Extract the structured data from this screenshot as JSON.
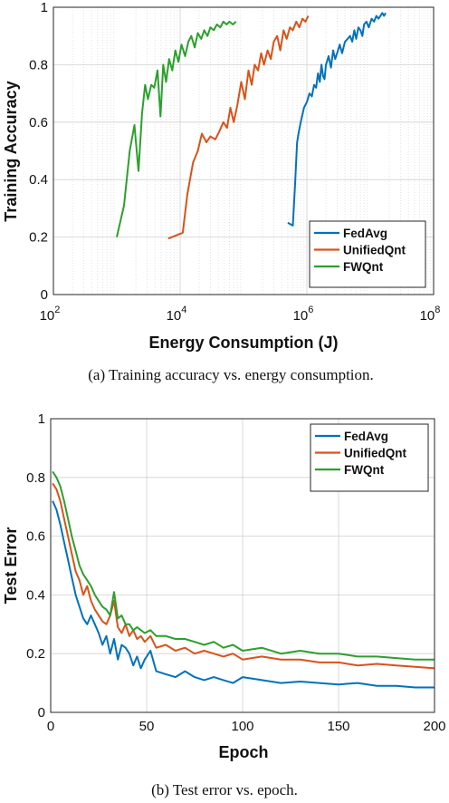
{
  "chart_data": [
    {
      "type": "line",
      "xscale": "log",
      "xlim": [
        100,
        100000000
      ],
      "ylim": [
        0,
        1
      ],
      "xticks": [
        100,
        10000,
        1000000,
        100000000
      ],
      "xtick_labels": [
        {
          "base": "10",
          "exp": "2"
        },
        {
          "base": "10",
          "exp": "4"
        },
        {
          "base": "10",
          "exp": "6"
        },
        {
          "base": "10",
          "exp": "8"
        }
      ],
      "yticks": [
        0,
        0.2,
        0.4,
        0.6,
        0.8,
        1
      ],
      "ytick_labels": [
        "0",
        "0.2",
        "0.4",
        "0.6",
        "0.8",
        "1"
      ],
      "xlabel": "Energy Consumption (J)",
      "ylabel": "Training Accuracy",
      "grid": true,
      "legend_position": "bottom-right",
      "caption": "(a) Training accuracy vs. energy consumption.",
      "series": [
        {
          "name": "FedAvg",
          "color": "#0072BD",
          "x": [
            500000,
            600000,
            650000,
            700000,
            750000,
            800000,
            900000,
            1000000,
            1100000,
            1200000,
            1300000,
            1400000,
            1500000,
            1600000,
            1700000,
            1800000,
            1900000,
            2000000,
            2200000,
            2400000,
            2600000,
            2800000,
            3000000,
            3300000,
            3600000,
            4000000,
            4400000,
            4800000,
            5200000,
            5600000,
            6000000,
            6500000,
            7000000,
            7500000,
            8000000,
            8700000,
            9500000,
            10500000,
            11500000,
            12500000,
            13500000,
            14500000,
            15500000,
            16500000,
            17500000
          ],
          "y": [
            0.25,
            0.24,
            0.38,
            0.53,
            0.57,
            0.6,
            0.65,
            0.67,
            0.7,
            0.69,
            0.73,
            0.72,
            0.77,
            0.74,
            0.8,
            0.76,
            0.75,
            0.8,
            0.83,
            0.79,
            0.85,
            0.82,
            0.84,
            0.87,
            0.84,
            0.88,
            0.89,
            0.9,
            0.88,
            0.92,
            0.89,
            0.93,
            0.92,
            0.9,
            0.94,
            0.95,
            0.93,
            0.96,
            0.95,
            0.97,
            0.96,
            0.97,
            0.98,
            0.97,
            0.98
          ]
        },
        {
          "name": "UnifiedQnt",
          "color": "#D95319",
          "x": [
            6500,
            11000,
            13000,
            16000,
            19000,
            22000,
            26000,
            30000,
            36000,
            42000,
            48000,
            55000,
            62000,
            70000,
            80000,
            92000,
            105000,
            120000,
            135000,
            150000,
            170000,
            190000,
            210000,
            240000,
            270000,
            300000,
            340000,
            380000,
            430000,
            480000,
            540000,
            600000,
            680000,
            760000,
            850000,
            950000,
            1050000
          ],
          "y": [
            0.195,
            0.215,
            0.35,
            0.46,
            0.5,
            0.56,
            0.53,
            0.55,
            0.54,
            0.57,
            0.6,
            0.58,
            0.65,
            0.6,
            0.66,
            0.74,
            0.68,
            0.78,
            0.73,
            0.8,
            0.78,
            0.84,
            0.8,
            0.85,
            0.82,
            0.88,
            0.9,
            0.85,
            0.92,
            0.89,
            0.93,
            0.92,
            0.95,
            0.93,
            0.96,
            0.95,
            0.97
          ]
        },
        {
          "name": "FWQnt",
          "color": "#2CA02C",
          "x": [
            1000,
            1300,
            1600,
            1900,
            2200,
            2500,
            2800,
            3100,
            3500,
            3900,
            4400,
            4900,
            5400,
            6000,
            6700,
            7500,
            8400,
            9400,
            10500,
            12000,
            13500,
            15000,
            17000,
            19000,
            21500,
            24000,
            27000,
            30000,
            34000,
            38000,
            43000,
            48000,
            54000,
            60000,
            68000,
            76000
          ],
          "y": [
            0.2,
            0.31,
            0.5,
            0.59,
            0.43,
            0.63,
            0.73,
            0.68,
            0.73,
            0.72,
            0.78,
            0.62,
            0.8,
            0.74,
            0.82,
            0.78,
            0.85,
            0.81,
            0.87,
            0.83,
            0.88,
            0.9,
            0.86,
            0.91,
            0.89,
            0.92,
            0.9,
            0.93,
            0.92,
            0.94,
            0.93,
            0.95,
            0.94,
            0.95,
            0.94,
            0.95
          ]
        }
      ]
    },
    {
      "type": "line",
      "xlim": [
        0,
        200
      ],
      "ylim": [
        0,
        1
      ],
      "xticks": [
        0,
        50,
        100,
        150,
        200
      ],
      "xtick_labels": [
        "0",
        "50",
        "100",
        "150",
        "200"
      ],
      "yticks": [
        0,
        0.2,
        0.4,
        0.6,
        0.8,
        1
      ],
      "ytick_labels": [
        "0",
        "0.2",
        "0.4",
        "0.6",
        "0.8",
        "1"
      ],
      "xlabel": "Epoch",
      "ylabel": "Test Error",
      "grid": true,
      "legend_position": "top-right",
      "caption": "(b) Test error vs. epoch.",
      "series": [
        {
          "name": "FedAvg",
          "color": "#0072BD",
          "x": [
            1,
            3,
            5,
            7,
            9,
            11,
            13,
            15,
            17,
            19,
            21,
            23,
            25,
            27,
            29,
            31,
            33,
            35,
            37,
            39,
            41,
            43,
            45,
            47,
            49,
            52,
            55,
            60,
            65,
            70,
            75,
            80,
            85,
            90,
            95,
            100,
            110,
            120,
            130,
            140,
            150,
            160,
            170,
            180,
            190,
            200
          ],
          "y": [
            0.72,
            0.69,
            0.64,
            0.58,
            0.52,
            0.46,
            0.4,
            0.36,
            0.32,
            0.3,
            0.33,
            0.3,
            0.27,
            0.23,
            0.26,
            0.2,
            0.25,
            0.18,
            0.23,
            0.22,
            0.2,
            0.16,
            0.19,
            0.15,
            0.18,
            0.21,
            0.14,
            0.13,
            0.12,
            0.14,
            0.12,
            0.11,
            0.12,
            0.11,
            0.1,
            0.12,
            0.11,
            0.1,
            0.105,
            0.1,
            0.095,
            0.1,
            0.09,
            0.09,
            0.085,
            0.085
          ]
        },
        {
          "name": "UnifiedQnt",
          "color": "#D95319",
          "x": [
            1,
            3,
            5,
            7,
            9,
            11,
            13,
            15,
            17,
            19,
            21,
            23,
            25,
            27,
            29,
            31,
            33,
            35,
            37,
            39,
            41,
            43,
            45,
            47,
            49,
            52,
            55,
            60,
            65,
            70,
            75,
            80,
            85,
            90,
            95,
            100,
            110,
            120,
            130,
            140,
            150,
            160,
            170,
            180,
            190,
            200
          ],
          "y": [
            0.78,
            0.76,
            0.72,
            0.66,
            0.6,
            0.54,
            0.48,
            0.45,
            0.4,
            0.43,
            0.38,
            0.35,
            0.33,
            0.31,
            0.3,
            0.33,
            0.38,
            0.29,
            0.27,
            0.3,
            0.26,
            0.28,
            0.25,
            0.26,
            0.24,
            0.26,
            0.22,
            0.23,
            0.21,
            0.22,
            0.2,
            0.21,
            0.2,
            0.19,
            0.2,
            0.18,
            0.19,
            0.18,
            0.18,
            0.17,
            0.17,
            0.16,
            0.165,
            0.16,
            0.155,
            0.15
          ]
        },
        {
          "name": "FWQnt",
          "color": "#2CA02C",
          "x": [
            1,
            3,
            5,
            7,
            9,
            11,
            13,
            15,
            17,
            19,
            21,
            23,
            25,
            27,
            29,
            31,
            33,
            35,
            37,
            39,
            41,
            43,
            45,
            47,
            49,
            52,
            55,
            60,
            65,
            70,
            75,
            80,
            85,
            90,
            95,
            100,
            110,
            120,
            130,
            140,
            150,
            160,
            170,
            180,
            190,
            200
          ],
          "y": [
            0.82,
            0.8,
            0.77,
            0.72,
            0.66,
            0.6,
            0.55,
            0.5,
            0.47,
            0.45,
            0.43,
            0.4,
            0.38,
            0.36,
            0.35,
            0.33,
            0.41,
            0.32,
            0.33,
            0.3,
            0.3,
            0.28,
            0.29,
            0.28,
            0.27,
            0.28,
            0.26,
            0.26,
            0.25,
            0.25,
            0.24,
            0.23,
            0.24,
            0.22,
            0.23,
            0.21,
            0.22,
            0.2,
            0.21,
            0.2,
            0.2,
            0.19,
            0.19,
            0.185,
            0.18,
            0.18
          ]
        }
      ]
    }
  ]
}
